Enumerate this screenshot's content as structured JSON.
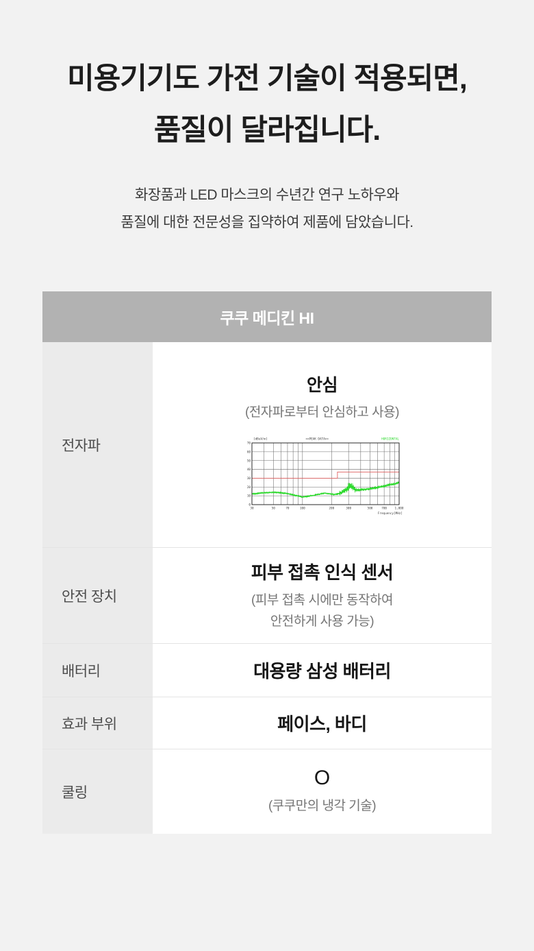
{
  "page": {
    "background": "#f2f2f2",
    "title_line1": "미용기기도 가전 기술이 적용되면,",
    "title_line2": "품질이 달라집니다.",
    "subtitle_line1": "화장품과 LED 마스크의 수년간 연구 노하우와",
    "subtitle_line2": "품질에 대한 전문성을 집약하여 제품에 담았습니다."
  },
  "table": {
    "header": "쿠쿠 메디킨 HI",
    "header_bg": "#b2b2b2",
    "label_bg": "#ebebeb",
    "rows": [
      {
        "label": "전자파",
        "value": "안심",
        "caption": "(전자파로부터 안심하고 사용)"
      },
      {
        "label": "안전 장치",
        "value": "피부 접촉 인식 센서",
        "caption_line1": "(피부 접촉 시에만 동작하여",
        "caption_line2": "안전하게 사용 가능)"
      },
      {
        "label": "배터리",
        "value": "대용량 삼성 배터리"
      },
      {
        "label": "효과 부위",
        "value": "페이스, 바디"
      },
      {
        "label": "쿨링",
        "value": "O",
        "caption": "(쿠쿠만의 냉각 기술)"
      }
    ]
  },
  "chart_data": {
    "type": "line",
    "title": "<<PEAK DATA>>",
    "unit_label": "[dBuV/m]",
    "corner_label": "HORIZONTAL",
    "xlabel": "Frequency[MHz]",
    "x_scale": "log",
    "xlim": [
      30,
      1000
    ],
    "ylim": [
      0,
      70
    ],
    "y_ticks": [
      0,
      10,
      20,
      30,
      40,
      50,
      60,
      70
    ],
    "x_ticks": [
      30,
      50,
      70,
      100,
      200,
      300,
      500,
      700,
      1000
    ],
    "x_tick_labels": [
      "30",
      "50",
      "70",
      "100",
      "200",
      "300",
      "500",
      "700",
      "1,000"
    ],
    "x_grid": [
      30,
      40,
      50,
      60,
      70,
      80,
      90,
      100,
      200,
      300,
      400,
      500,
      600,
      700,
      800,
      900,
      1000
    ],
    "colors": {
      "trace": "#2ad92a",
      "limit": "#e06262",
      "grid": "#6b6b6b",
      "frame": "#1a1a1a",
      "text": "#3a3a3a"
    },
    "series": [
      {
        "name": "peak-data",
        "x": [
          30,
          40,
          50,
          60,
          70,
          80,
          90,
          100,
          115,
          130,
          150,
          170,
          190,
          210,
          230,
          250,
          270,
          290,
          310,
          330,
          350,
          380,
          420,
          470,
          530,
          600,
          700,
          800,
          900,
          1000
        ],
        "y": [
          12,
          13.5,
          14,
          13.5,
          12.5,
          11,
          10,
          8.5,
          9.5,
          10.5,
          12,
          13,
          12.5,
          11.5,
          12,
          13.5,
          15,
          18,
          21,
          20,
          17,
          16.5,
          17,
          17.5,
          18.5,
          19.5,
          21,
          22.5,
          23.5,
          25
        ]
      },
      {
        "name": "limit-line",
        "x": [
          30,
          230,
          230,
          1000
        ],
        "y": [
          30,
          30,
          37,
          37
        ]
      }
    ],
    "noise_regions": [
      {
        "from": 30,
        "to": 240,
        "amp": 1.1
      },
      {
        "from": 240,
        "to": 285,
        "amp": 2.4
      },
      {
        "from": 285,
        "to": 350,
        "amp": 3.6
      },
      {
        "from": 350,
        "to": 430,
        "amp": 1.8
      },
      {
        "from": 430,
        "to": 1000,
        "amp": 1.5
      }
    ],
    "spikes": {
      "from": 288,
      "to": 340,
      "prob": 0.2,
      "extra": 4.5
    },
    "seed": 20240601
  }
}
